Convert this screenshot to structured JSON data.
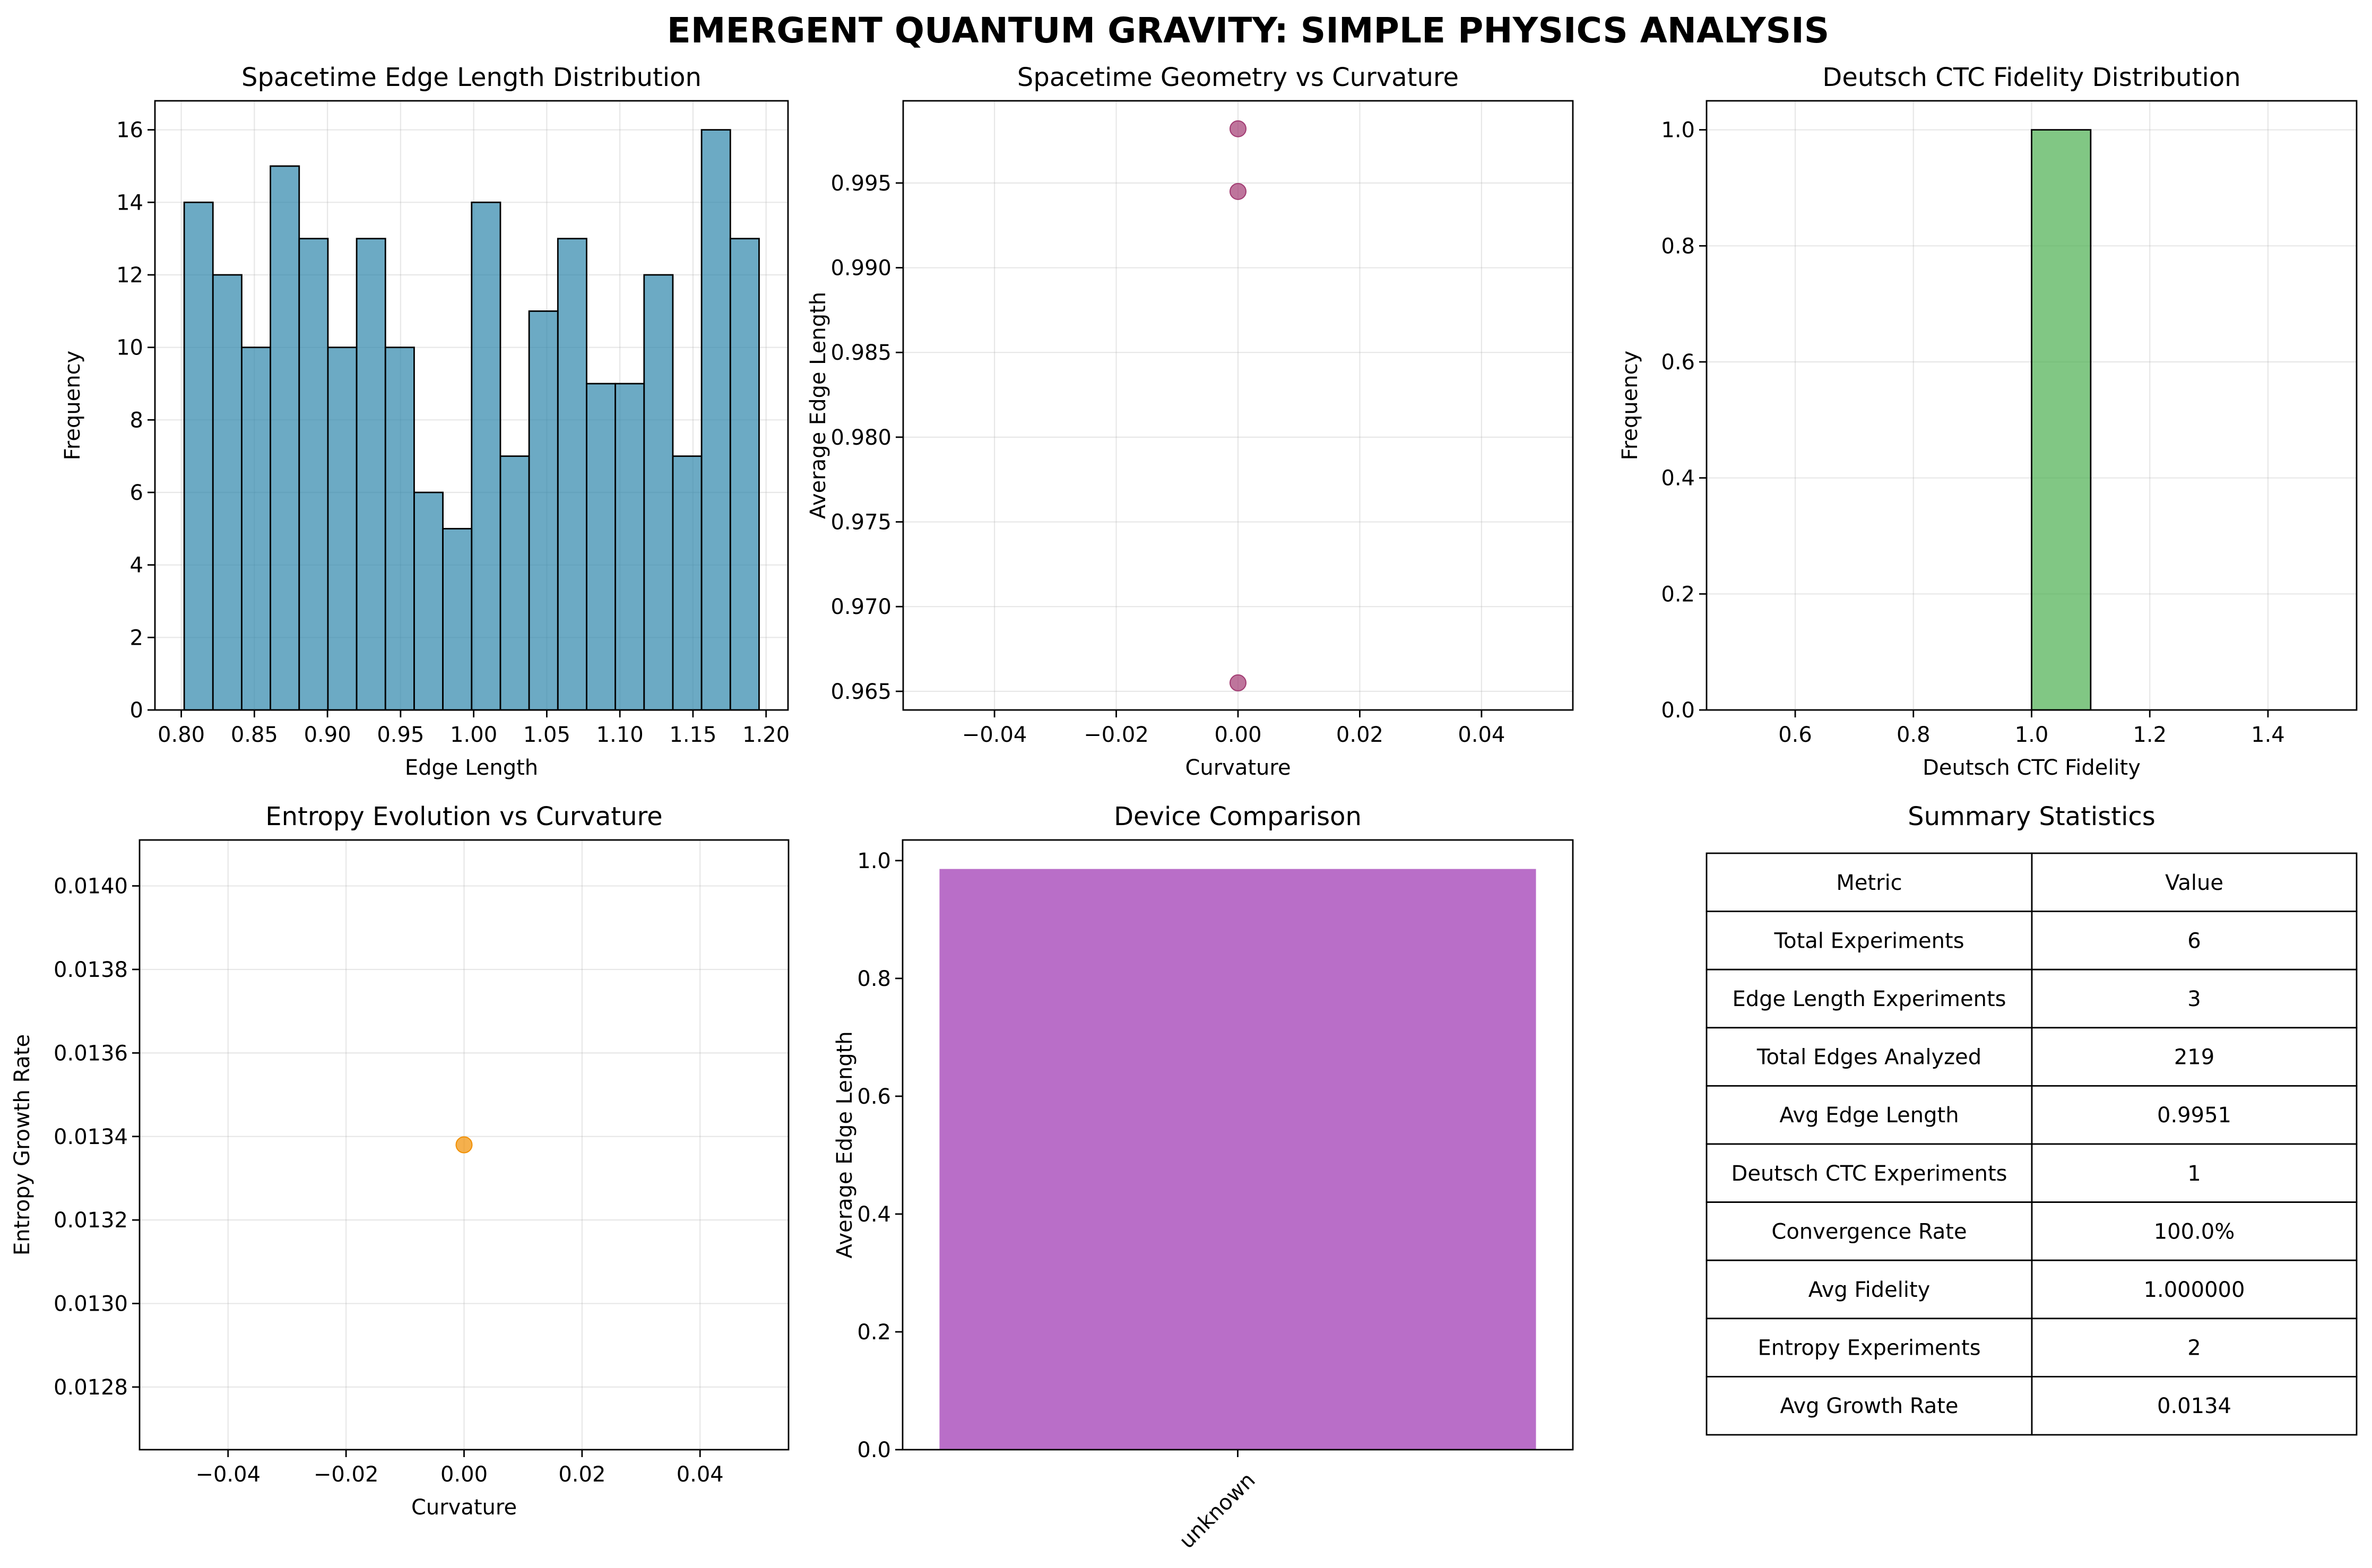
{
  "suptitle": "EMERGENT QUANTUM GRAVITY: SIMPLE PHYSICS ANALYSIS",
  "chart_data": [
    {
      "id": "edge_hist",
      "type": "bar",
      "title": "Spacetime Edge Length Distribution",
      "xlabel": "Edge Length",
      "ylabel": "Frequency",
      "bin_start": 0.802,
      "bin_width": 0.01966,
      "values": [
        14,
        12,
        10,
        15,
        13,
        10,
        13,
        10,
        6,
        5,
        14,
        7,
        11,
        13,
        9,
        9,
        12,
        7,
        16,
        13
      ],
      "xlim": [
        0.782,
        1.215
      ],
      "ylim": [
        0,
        16.8
      ],
      "xticks": [
        0.8,
        0.85,
        0.9,
        0.95,
        1.0,
        1.05,
        1.1,
        1.15,
        1.2
      ],
      "xtick_labels": [
        "0.80",
        "0.85",
        "0.90",
        "0.95",
        "1.00",
        "1.05",
        "1.10",
        "1.15",
        "1.20"
      ],
      "yticks": [
        0,
        2,
        4,
        6,
        8,
        10,
        12,
        14,
        16
      ],
      "ytick_labels": [
        "0",
        "2",
        "4",
        "6",
        "8",
        "10",
        "12",
        "14",
        "16"
      ],
      "color": "#2E86AB",
      "grid": true
    },
    {
      "id": "geom_scatter",
      "type": "scatter",
      "title": "Spacetime Geometry vs Curvature",
      "xlabel": "Curvature",
      "ylabel": "Average Edge Length",
      "points": [
        [
          0.0,
          0.9982
        ],
        [
          0.0,
          0.9945
        ],
        [
          0.0,
          0.9655
        ]
      ],
      "xlim": [
        -0.055,
        0.055
      ],
      "ylim": [
        0.9639,
        0.99985
      ],
      "xticks": [
        -0.04,
        -0.02,
        0.0,
        0.02,
        0.04
      ],
      "xtick_labels": [
        "−0.04",
        "−0.02",
        "0.00",
        "0.02",
        "0.04"
      ],
      "yticks": [
        0.965,
        0.97,
        0.975,
        0.98,
        0.985,
        0.99,
        0.995
      ],
      "ytick_labels": [
        "0.965",
        "0.970",
        "0.975",
        "0.980",
        "0.985",
        "0.990",
        "0.995"
      ],
      "color": "#A23B72",
      "grid": true
    },
    {
      "id": "ctc_hist",
      "type": "bar",
      "title": "Deutsch CTC Fidelity Distribution",
      "xlabel": "Deutsch CTC Fidelity",
      "ylabel": "Frequency",
      "bin_start": 0.5,
      "bin_width": 0.1,
      "values": [
        0,
        0,
        0,
        0,
        0,
        1,
        0,
        0,
        0,
        0
      ],
      "xlim": [
        0.45,
        1.55
      ],
      "ylim": [
        0,
        1.05
      ],
      "xticks": [
        0.6,
        0.8,
        1.0,
        1.2,
        1.4
      ],
      "xtick_labels": [
        "0.6",
        "0.8",
        "1.0",
        "1.2",
        "1.4"
      ],
      "yticks": [
        0.0,
        0.2,
        0.4,
        0.6,
        0.8,
        1.0
      ],
      "ytick_labels": [
        "0.0",
        "0.2",
        "0.4",
        "0.6",
        "0.8",
        "1.0"
      ],
      "color": "#4CAF50",
      "grid": true
    },
    {
      "id": "entropy_scatter",
      "type": "scatter",
      "title": "Entropy Evolution vs Curvature",
      "xlabel": "Curvature",
      "ylabel": "Entropy Growth Rate",
      "points": [
        [
          0.0,
          0.01338
        ]
      ],
      "xlim": [
        -0.055,
        0.055
      ],
      "ylim": [
        0.01265,
        0.01411
      ],
      "xticks": [
        -0.04,
        -0.02,
        0.0,
        0.02,
        0.04
      ],
      "xtick_labels": [
        "−0.04",
        "−0.02",
        "0.00",
        "0.02",
        "0.04"
      ],
      "yticks": [
        0.0128,
        0.013,
        0.0132,
        0.0134,
        0.0136,
        0.0138,
        0.014
      ],
      "ytick_labels": [
        "0.0128",
        "0.0130",
        "0.0132",
        "0.0134",
        "0.0136",
        "0.0138",
        "0.0140"
      ],
      "color": "#F18F01",
      "grid": true
    },
    {
      "id": "device_bar",
      "type": "bar",
      "title": "Device Comparison",
      "xlabel": "",
      "ylabel": "Average Edge Length",
      "categories": [
        "unknown"
      ],
      "values": [
        0.9858
      ],
      "ylim": [
        0,
        1.035
      ],
      "yticks": [
        0.0,
        0.2,
        0.4,
        0.6,
        0.8,
        1.0
      ],
      "ytick_labels": [
        "0.0",
        "0.2",
        "0.4",
        "0.6",
        "0.8",
        "1.0"
      ],
      "color": "#9B30B0",
      "grid": false
    },
    {
      "id": "summary_table",
      "type": "table",
      "title": "Summary Statistics",
      "columns": [
        "Metric",
        "Value"
      ],
      "rows": [
        [
          "Total Experiments",
          "6"
        ],
        [
          "Edge Length Experiments",
          "3"
        ],
        [
          "Total Edges Analyzed",
          "219"
        ],
        [
          "Avg Edge Length",
          "0.9951"
        ],
        [
          "Deutsch CTC Experiments",
          "1"
        ],
        [
          "Convergence Rate",
          "100.0%"
        ],
        [
          "Avg Fidelity",
          "1.000000"
        ],
        [
          "Entropy Experiments",
          "2"
        ],
        [
          "Avg Growth Rate",
          "0.0134"
        ]
      ]
    }
  ]
}
